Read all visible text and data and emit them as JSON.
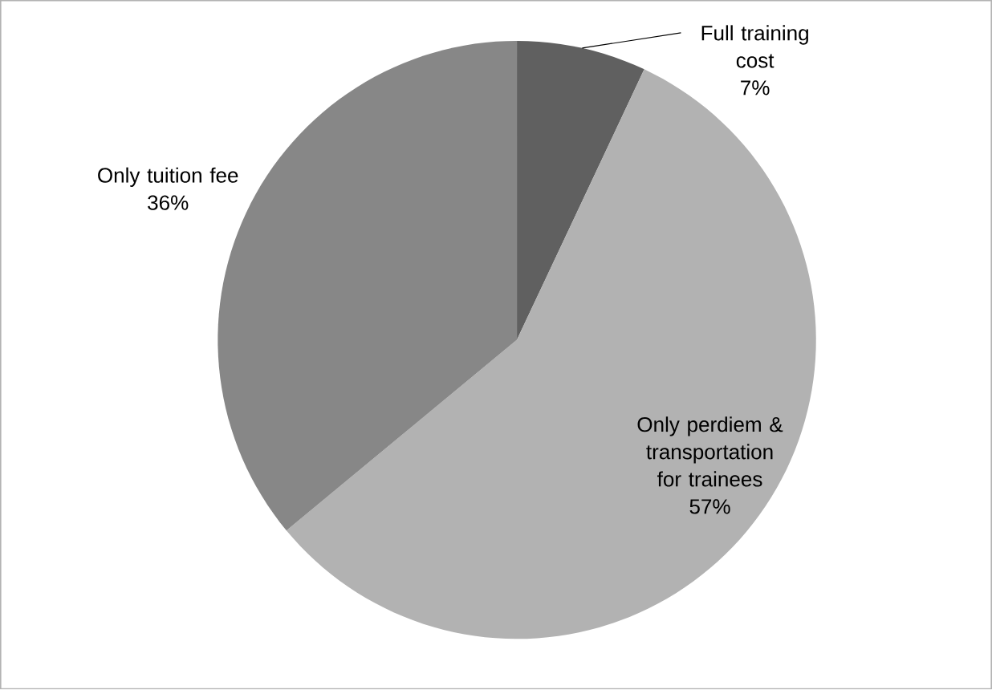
{
  "chart_data": {
    "type": "pie",
    "categories": [
      "Full training cost",
      "Only perdiem & transportation for trainees",
      "Only tuition fee"
    ],
    "values": [
      7,
      57,
      36
    ],
    "value_labels": [
      "7%",
      "57%",
      "36%"
    ],
    "colors": [
      "#606060",
      "#b2b2b2",
      "#878787"
    ]
  }
}
